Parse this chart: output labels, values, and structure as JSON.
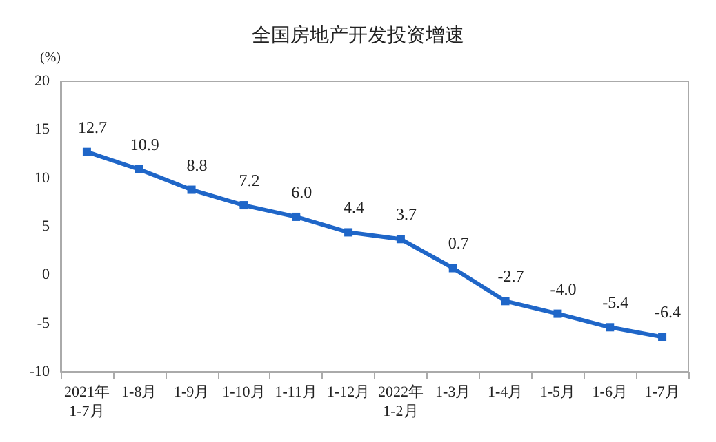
{
  "chart_data": {
    "type": "line",
    "title": "全国房地产开发投资增速",
    "ylabel": "(%)",
    "categories": [
      "2021年\n1-7月",
      "1-8月",
      "1-9月",
      "1-10月",
      "1-11月",
      "1-12月",
      "2022年\n1-2月",
      "1-3月",
      "1-4月",
      "1-5月",
      "1-6月",
      "1-7月"
    ],
    "series": [
      {
        "color": "#1f66c8",
        "values": [
          12.7,
          10.9,
          8.8,
          7.2,
          6.0,
          4.4,
          3.7,
          0.7,
          -2.7,
          -4.0,
          -5.4,
          -6.4
        ],
        "value_labels": [
          "12.7",
          "10.9",
          "8.8",
          "7.2",
          "6.0",
          "4.4",
          "3.7",
          "0.7",
          "-2.7",
          "-4.0",
          "-5.4",
          "-6.4"
        ]
      }
    ],
    "ylim": [
      -10,
      20
    ],
    "yticks": [
      -10,
      -5,
      0,
      5,
      10,
      15,
      20
    ],
    "grid": false,
    "marker": "square",
    "line_style": "solid"
  }
}
